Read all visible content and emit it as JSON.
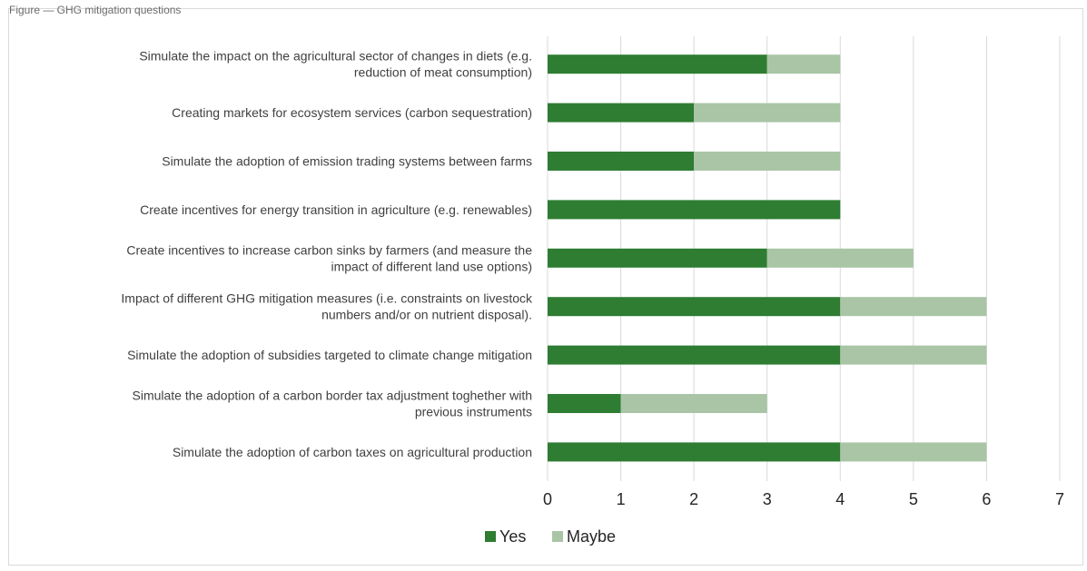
{
  "figure": {
    "top_caption": "Figure — GHG mitigation questions"
  },
  "chart_data": {
    "type": "bar",
    "orientation": "horizontal",
    "stacked": true,
    "categories": [
      [
        "Simulate the impact on the agricultural sector of changes in diets (e.g.",
        "reduction of meat consumption)"
      ],
      [
        "Creating markets for ecosystem services (carbon sequestration)"
      ],
      [
        "Simulate the adoption of emission trading systems between farms"
      ],
      [
        "Create incentives for energy transition in agriculture (e.g. renewables)"
      ],
      [
        "Create incentives to increase carbon sinks by farmers (and measure the",
        "impact of different land use options)"
      ],
      [
        "Impact of different GHG mitigation measures (i.e. constraints on livestock",
        "numbers and/or on nutrient disposal)."
      ],
      [
        "Simulate the adoption of subsidies targeted to climate change mitigation"
      ],
      [
        "Simulate the adoption of a carbon border tax adjustment toghether with",
        "previous instruments"
      ],
      [
        "Simulate the adoption of carbon taxes on agricultural production"
      ]
    ],
    "series": [
      {
        "name": "Yes",
        "color": "#2e7d32",
        "values": [
          3,
          2,
          2,
          4,
          3,
          4,
          4,
          1,
          4
        ]
      },
      {
        "name": "Maybe",
        "color": "#a9c5a6",
        "values": [
          1,
          2,
          2,
          0,
          2,
          2,
          2,
          2,
          2
        ]
      }
    ],
    "xlim": [
      0,
      7
    ],
    "xticks": [
      "0",
      "1",
      "2",
      "3",
      "4",
      "5",
      "6",
      "7"
    ],
    "grid": true,
    "legend_position": "bottom"
  }
}
